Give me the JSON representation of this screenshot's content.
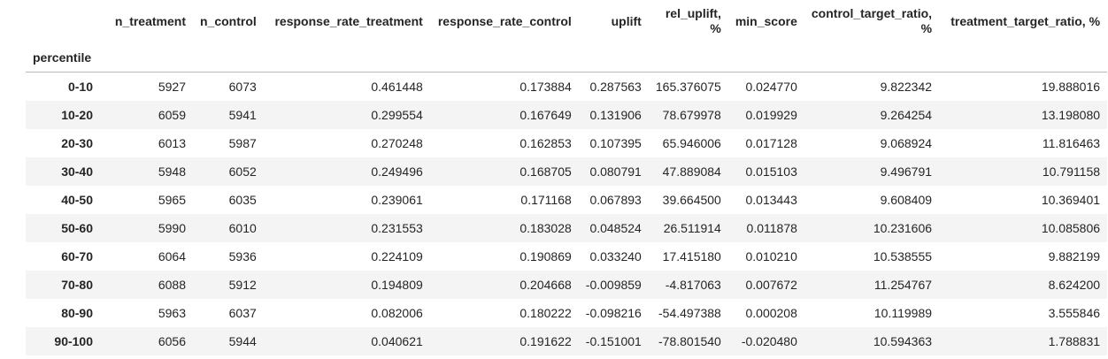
{
  "table": {
    "index_name": "percentile",
    "columns": [
      "n_treatment",
      "n_control",
      "response_rate_treatment",
      "response_rate_control",
      "uplift",
      "rel_uplift, %",
      "min_score",
      "control_target_ratio, %",
      "treatment_target_ratio, %"
    ],
    "rows": [
      {
        "percentile": "0-10",
        "values": [
          "5927",
          "6073",
          "0.461448",
          "0.173884",
          "0.287563",
          "165.376075",
          "0.024770",
          "9.822342",
          "19.888016"
        ]
      },
      {
        "percentile": "10-20",
        "values": [
          "6059",
          "5941",
          "0.299554",
          "0.167649",
          "0.131906",
          "78.679978",
          "0.019929",
          "9.264254",
          "13.198080"
        ]
      },
      {
        "percentile": "20-30",
        "values": [
          "6013",
          "5987",
          "0.270248",
          "0.162853",
          "0.107395",
          "65.946006",
          "0.017128",
          "9.068924",
          "11.816463"
        ]
      },
      {
        "percentile": "30-40",
        "values": [
          "5948",
          "6052",
          "0.249496",
          "0.168705",
          "0.080791",
          "47.889084",
          "0.015103",
          "9.496791",
          "10.791158"
        ]
      },
      {
        "percentile": "40-50",
        "values": [
          "5965",
          "6035",
          "0.239061",
          "0.171168",
          "0.067893",
          "39.664500",
          "0.013443",
          "9.608409",
          "10.369401"
        ]
      },
      {
        "percentile": "50-60",
        "values": [
          "5990",
          "6010",
          "0.231553",
          "0.183028",
          "0.048524",
          "26.511914",
          "0.011878",
          "10.231606",
          "10.085806"
        ]
      },
      {
        "percentile": "60-70",
        "values": [
          "6064",
          "5936",
          "0.224109",
          "0.190869",
          "0.033240",
          "17.415180",
          "0.010210",
          "10.538555",
          "9.882199"
        ]
      },
      {
        "percentile": "70-80",
        "values": [
          "6088",
          "5912",
          "0.194809",
          "0.204668",
          "-0.009859",
          "-4.817063",
          "0.007672",
          "11.254767",
          "8.624200"
        ]
      },
      {
        "percentile": "80-90",
        "values": [
          "5963",
          "6037",
          "0.082006",
          "0.180222",
          "-0.098216",
          "-54.497388",
          "0.000208",
          "10.119989",
          "3.555846"
        ]
      },
      {
        "percentile": "90-100",
        "values": [
          "6056",
          "5944",
          "0.040621",
          "0.191622",
          "-0.151001",
          "-78.801540",
          "-0.020480",
          "10.594363",
          "1.788831"
        ]
      }
    ]
  }
}
